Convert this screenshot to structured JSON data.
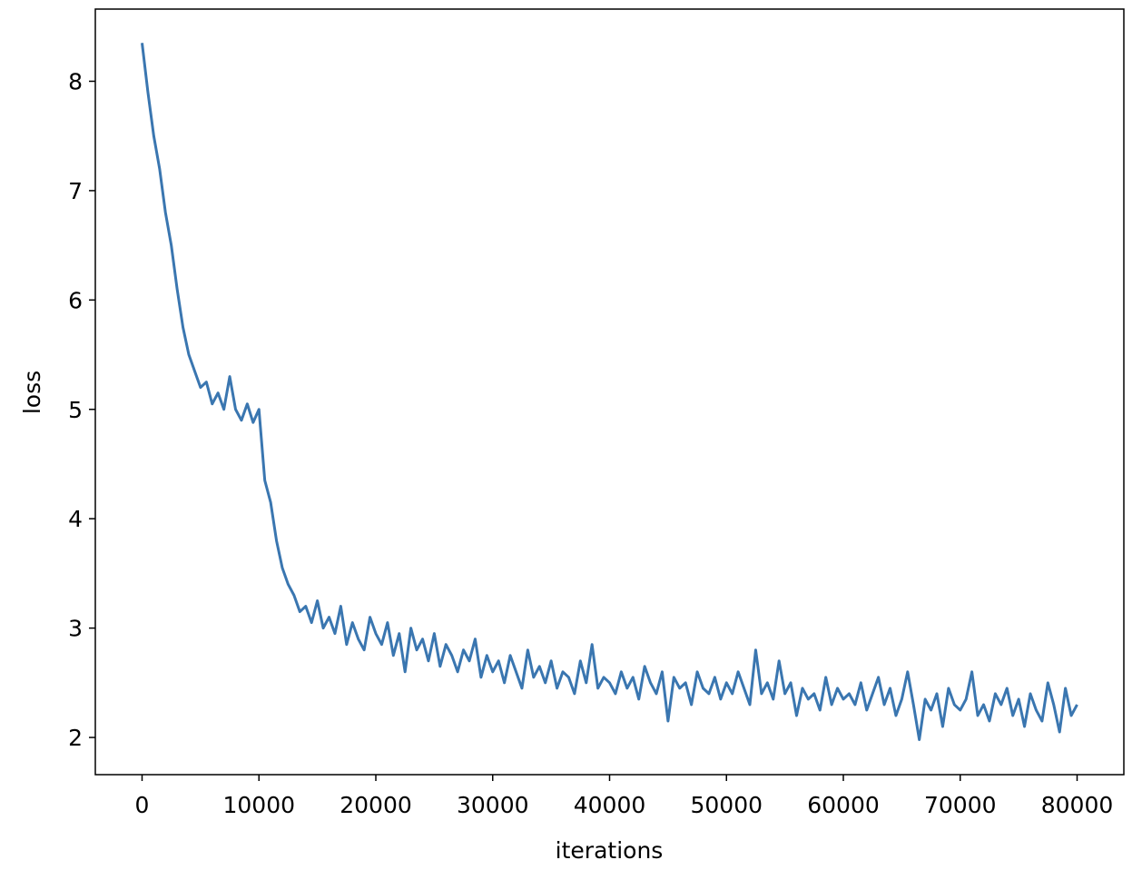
{
  "chart_data": {
    "type": "line",
    "xlabel": "iterations",
    "ylabel": "loss",
    "xlim": [
      -4000,
      84000
    ],
    "ylim": [
      1.66,
      8.66
    ],
    "xticks": [
      0,
      10000,
      20000,
      30000,
      40000,
      50000,
      60000,
      70000,
      80000
    ],
    "yticks": [
      2,
      3,
      4,
      5,
      6,
      7,
      8
    ],
    "grid": false,
    "x": [
      0,
      500,
      1000,
      1500,
      2000,
      2500,
      3000,
      3500,
      4000,
      4500,
      5000,
      5500,
      6000,
      6500,
      7000,
      7500,
      8000,
      8500,
      9000,
      9500,
      10000,
      10500,
      11000,
      11500,
      12000,
      12500,
      13000,
      13500,
      14000,
      14500,
      15000,
      15500,
      16000,
      16500,
      17000,
      17500,
      18000,
      18500,
      19000,
      19500,
      20000,
      20500,
      21000,
      21500,
      22000,
      22500,
      23000,
      23500,
      24000,
      24500,
      25000,
      25500,
      26000,
      26500,
      27000,
      27500,
      28000,
      28500,
      29000,
      29500,
      30000,
      30500,
      31000,
      31500,
      32000,
      32500,
      33000,
      33500,
      34000,
      34500,
      35000,
      35500,
      36000,
      36500,
      37000,
      37500,
      38000,
      38500,
      39000,
      39500,
      40000,
      40500,
      41000,
      41500,
      42000,
      42500,
      43000,
      43500,
      44000,
      44500,
      45000,
      45500,
      46000,
      46500,
      47000,
      47500,
      48000,
      48500,
      49000,
      49500,
      50000,
      50500,
      51000,
      51500,
      52000,
      52500,
      53000,
      53500,
      54000,
      54500,
      55000,
      55500,
      56000,
      56500,
      57000,
      57500,
      58000,
      58500,
      59000,
      59500,
      60000,
      60500,
      61000,
      61500,
      62000,
      62500,
      63000,
      63500,
      64000,
      64500,
      65000,
      65500,
      66000,
      66500,
      67000,
      67500,
      68000,
      68500,
      69000,
      69500,
      70000,
      70500,
      71000,
      71500,
      72000,
      72500,
      73000,
      73500,
      74000,
      74500,
      75000,
      75500,
      76000,
      76500,
      77000,
      77500,
      78000,
      78500,
      79000,
      79500,
      80000
    ],
    "series": [
      {
        "color": "#3a76b0",
        "values": [
          8.35,
          7.9,
          7.5,
          7.2,
          6.8,
          6.5,
          6.1,
          5.75,
          5.5,
          5.35,
          5.2,
          5.25,
          5.05,
          5.15,
          5.0,
          5.3,
          5.0,
          4.9,
          5.05,
          4.88,
          5.0,
          4.35,
          4.15,
          3.8,
          3.55,
          3.4,
          3.3,
          3.15,
          3.2,
          3.05,
          3.25,
          3.0,
          3.1,
          2.95,
          3.2,
          2.85,
          3.05,
          2.9,
          2.8,
          3.1,
          2.95,
          2.85,
          3.05,
          2.75,
          2.95,
          2.6,
          3.0,
          2.8,
          2.9,
          2.7,
          2.95,
          2.65,
          2.85,
          2.75,
          2.6,
          2.8,
          2.7,
          2.9,
          2.55,
          2.75,
          2.6,
          2.7,
          2.5,
          2.75,
          2.6,
          2.45,
          2.8,
          2.55,
          2.65,
          2.5,
          2.7,
          2.45,
          2.6,
          2.55,
          2.4,
          2.7,
          2.5,
          2.85,
          2.45,
          2.55,
          2.5,
          2.4,
          2.6,
          2.45,
          2.55,
          2.35,
          2.65,
          2.5,
          2.4,
          2.6,
          2.15,
          2.55,
          2.45,
          2.5,
          2.3,
          2.6,
          2.45,
          2.4,
          2.55,
          2.35,
          2.5,
          2.4,
          2.6,
          2.45,
          2.3,
          2.8,
          2.4,
          2.5,
          2.35,
          2.7,
          2.4,
          2.5,
          2.2,
          2.45,
          2.35,
          2.4,
          2.25,
          2.55,
          2.3,
          2.45,
          2.35,
          2.4,
          2.3,
          2.5,
          2.25,
          2.4,
          2.55,
          2.3,
          2.45,
          2.2,
          2.35,
          2.6,
          2.3,
          1.98,
          2.35,
          2.25,
          2.4,
          2.1,
          2.45,
          2.3,
          2.25,
          2.35,
          2.6,
          2.2,
          2.3,
          2.15,
          2.4,
          2.3,
          2.45,
          2.2,
          2.35,
          2.1,
          2.4,
          2.25,
          2.15,
          2.5,
          2.3,
          2.05,
          2.45,
          2.2,
          2.3
        ]
      }
    ]
  }
}
